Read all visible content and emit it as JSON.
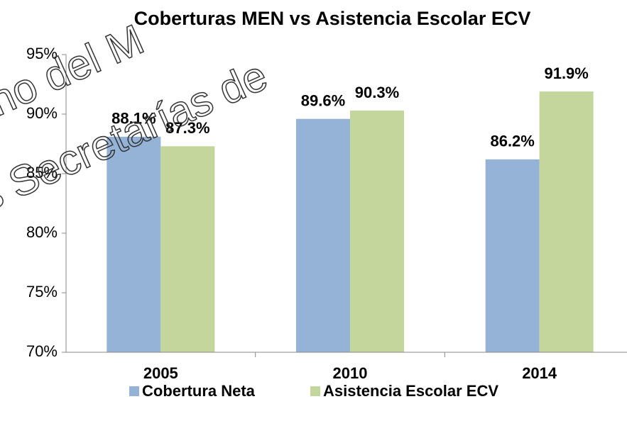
{
  "chart_data": {
    "type": "bar",
    "title": "Coberturas MEN vs Asistencia Escolar ECV",
    "categories": [
      "2005",
      "2010",
      "2014"
    ],
    "series": [
      {
        "name": "Cobertura Neta",
        "color": "#95b3d7",
        "values": [
          88.1,
          89.6,
          86.2
        ],
        "value_labels": [
          "88.1%",
          "89.6%",
          "86.2%"
        ]
      },
      {
        "name": "Asistencia Escolar ECV",
        "color": "#c3d69b",
        "values": [
          87.3,
          90.3,
          91.9
        ],
        "value_labels": [
          "87.3%",
          "90.3%",
          "91.9%"
        ]
      }
    ],
    "ylim": [
      70,
      95
    ],
    "yticks": [
      {
        "value": 70,
        "label": "70%"
      },
      {
        "value": 75,
        "label": "75%"
      },
      {
        "value": 80,
        "label": "80%"
      },
      {
        "value": 85,
        "label": "85%"
      },
      {
        "value": 90,
        "label": "90%"
      },
      {
        "value": 95,
        "label": "95%"
      }
    ],
    "grid": false,
    "legend": "bottom",
    "watermark": [
      "no del M",
      "s Secretarías de"
    ]
  }
}
